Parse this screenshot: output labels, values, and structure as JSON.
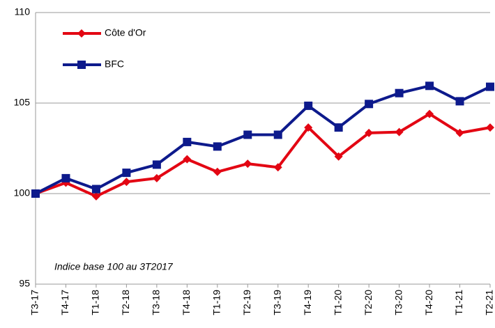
{
  "chart_data": {
    "type": "line",
    "categories": [
      "T3-17",
      "T4-17",
      "T1-18",
      "T2-18",
      "T3-18",
      "T4-18",
      "T1-19",
      "T2-19",
      "T3-19",
      "T4-19",
      "T1-20",
      "T2-20",
      "T3-20",
      "T4-20",
      "T1-21",
      "T2-21"
    ],
    "series": [
      {
        "name": "Côte d'Or",
        "color": "#e30613",
        "marker": "diamond",
        "values": [
          100,
          100.6,
          99.85,
          100.65,
          100.85,
          101.9,
          101.2,
          101.65,
          101.45,
          103.65,
          102.05,
          103.35,
          103.4,
          104.4,
          103.35,
          103.65
        ]
      },
      {
        "name": "BFC",
        "color": "#0d1a8c",
        "marker": "square",
        "values": [
          100,
          100.85,
          100.25,
          101.15,
          101.6,
          102.85,
          102.6,
          103.25,
          103.25,
          104.85,
          103.65,
          104.95,
          105.55,
          105.95,
          105.1,
          105.9
        ]
      }
    ],
    "ylim": [
      95,
      110
    ],
    "yticks": [
      95,
      100,
      105,
      110
    ],
    "grid": true,
    "annotation": "Indice base 100 au 3T2017"
  }
}
